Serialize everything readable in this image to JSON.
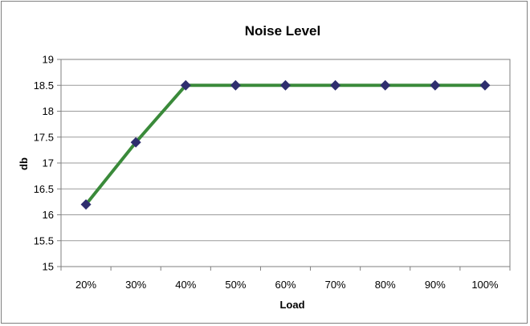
{
  "chart_data": {
    "type": "line",
    "title": "Noise Level",
    "xlabel": "Load",
    "ylabel": "db",
    "categories": [
      "20%",
      "30%",
      "40%",
      "50%",
      "60%",
      "70%",
      "80%",
      "90%",
      "100%"
    ],
    "series": [
      {
        "values": [
          16.2,
          17.4,
          18.5,
          18.5,
          18.5,
          18.5,
          18.5,
          18.5,
          18.5
        ]
      }
    ],
    "ylim": [
      15,
      19
    ],
    "yticks": [
      "15",
      "15.5",
      "16",
      "16.5",
      "17",
      "17.5",
      "18",
      "18.5",
      "19"
    ],
    "grid": true,
    "legend": "none",
    "colors": {
      "line": "#3a8a3a",
      "marker": "#2e2e6e",
      "grid": "#9a9a9a",
      "axis": "#7f7f7f"
    }
  }
}
